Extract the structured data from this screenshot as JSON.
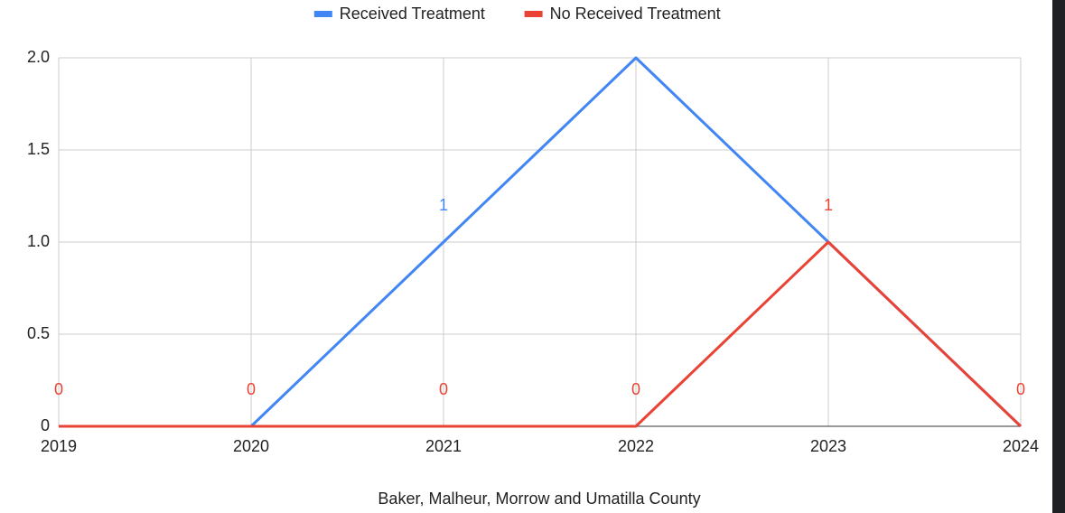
{
  "chart_data": {
    "type": "line",
    "x": [
      2019,
      2020,
      2021,
      2022,
      2023,
      2024
    ],
    "xlim": [
      2019,
      2024
    ],
    "xticks": [
      2019,
      2020,
      2021,
      2022,
      2023,
      2024
    ],
    "ylim": [
      0,
      2
    ],
    "yticks": [
      0,
      {
        "value": 0.5,
        "label": "0.5"
      },
      {
        "value": 1,
        "label": "1.0"
      },
      {
        "value": 1.5,
        "label": "1.5"
      },
      {
        "value": 2,
        "label": "2.0"
      }
    ],
    "grid": true,
    "legend": "top",
    "xlabel": "Baker, Malheur, Morrow and Umatilla County",
    "series": [
      {
        "name": "Received Treatment",
        "color": "#4285f4",
        "values": [
          0,
          0,
          1,
          2,
          1,
          0
        ],
        "value_labels": [
          null,
          null,
          "1",
          null,
          null,
          null
        ]
      },
      {
        "name": "No Received Treatment",
        "color": "#ea4335",
        "values": [
          0,
          0,
          0,
          0,
          1,
          0
        ],
        "value_labels": [
          "0",
          "0",
          "0",
          "0",
          "1",
          "0"
        ]
      }
    ]
  }
}
